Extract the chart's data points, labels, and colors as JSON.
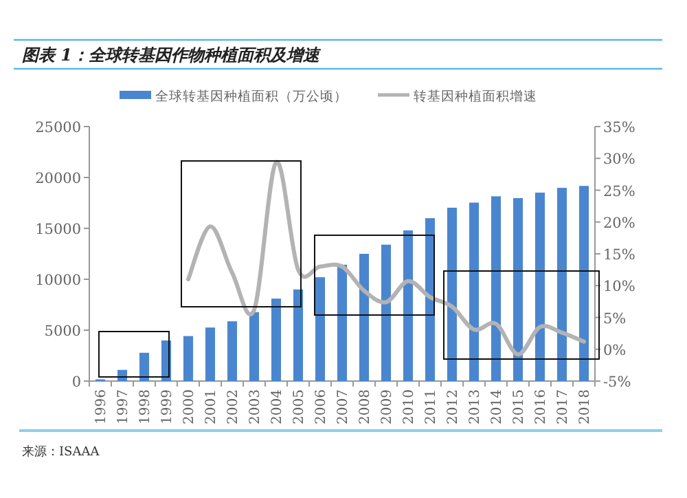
{
  "chart_data": {
    "type": "bar",
    "title": "图表 1：全球转基因作物种植面积及增速",
    "categories": [
      "1996",
      "1997",
      "1998",
      "1999",
      "2000",
      "2001",
      "2002",
      "2003",
      "2004",
      "2005",
      "2006",
      "2007",
      "2008",
      "2009",
      "2010",
      "2011",
      "2012",
      "2013",
      "2014",
      "2015",
      "2016",
      "2017",
      "2018"
    ],
    "series": [
      {
        "name": "全球转基因种植面积（万公顷）",
        "color": "#4a86d0",
        "values": [
          170,
          1100,
          2780,
          3990,
          4420,
          5260,
          5870,
          6770,
          8100,
          9000,
          10200,
          11430,
          12500,
          13400,
          14800,
          16000,
          17030,
          17530,
          18150,
          17970,
          18510,
          18980,
          19170
        ]
      },
      {
        "name": "转基因种植面积增速",
        "type": "line",
        "axis": "y2",
        "color": "#b3b3b3",
        "values": [
          null,
          null,
          null,
          null,
          11,
          19.3,
          12,
          6.2,
          29.4,
          12.5,
          13,
          13,
          9.2,
          7.4,
          10.7,
          8.2,
          6.7,
          3.1,
          4,
          -0.8,
          3.5,
          2.6,
          1.2
        ]
      }
    ],
    "ylim": [
      0,
      25000
    ],
    "yticks": [
      0,
      5000,
      10000,
      15000,
      20000,
      25000
    ],
    "y2lim": [
      -5,
      35
    ],
    "y2ticks": [
      {
        "value": -5,
        "label": "-5%"
      },
      {
        "value": 0,
        "label": "0%"
      },
      {
        "value": 5,
        "label": "5%"
      },
      {
        "value": 10,
        "label": "10%"
      },
      {
        "value": 15,
        "label": "15%"
      },
      {
        "value": 20,
        "label": "20%"
      },
      {
        "value": 25,
        "label": "25%"
      },
      {
        "value": 30,
        "label": "30%"
      },
      {
        "value": 35,
        "label": "35%"
      }
    ],
    "legend": "top",
    "grid": false,
    "annotations": [
      "来源：ISAAA"
    ]
  }
}
